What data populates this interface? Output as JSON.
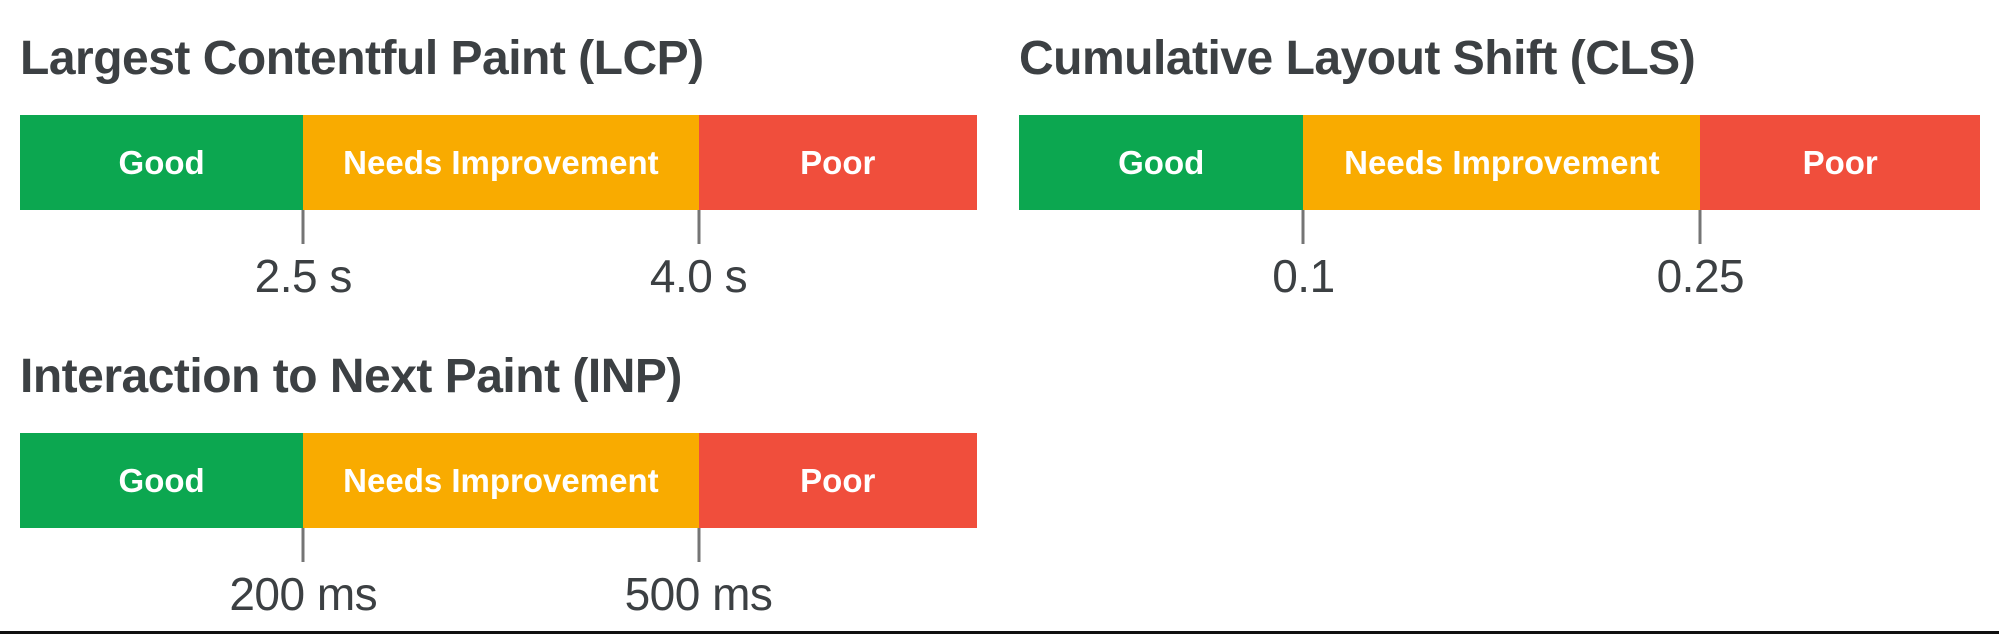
{
  "page": {
    "background": "#FFFFFF",
    "divider_color": "#101010"
  },
  "colors": {
    "good": "#0CA750",
    "needs_improvement": "#F9AB00",
    "poor": "#F04E3C",
    "title_text": "#3C4043",
    "threshold_text": "#3C4043",
    "segment_text": "#FFFFFF",
    "tick_line": "#757575"
  },
  "metrics": [
    {
      "id": "lcp",
      "title": "Largest Contentful Paint (LCP)",
      "segments": [
        {
          "label": "Good",
          "color": "#0CA750"
        },
        {
          "label": "Needs Improvement",
          "color": "#F9AB00"
        },
        {
          "label": "Poor",
          "color": "#F04E3C"
        }
      ],
      "thresholds": [
        {
          "label": "2.5 s"
        },
        {
          "label": "4.0 s"
        }
      ]
    },
    {
      "id": "cls",
      "title": "Cumulative Layout Shift (CLS)",
      "segments": [
        {
          "label": "Good",
          "color": "#0CA750"
        },
        {
          "label": "Needs Improvement",
          "color": "#F9AB00"
        },
        {
          "label": "Poor",
          "color": "#F04E3C"
        }
      ],
      "thresholds": [
        {
          "label": "0.1"
        },
        {
          "label": "0.25"
        }
      ]
    },
    {
      "id": "inp",
      "title": "Interaction to Next Paint (INP)",
      "segments": [
        {
          "label": "Good",
          "color": "#0CA750"
        },
        {
          "label": "Needs Improvement",
          "color": "#F9AB00"
        },
        {
          "label": "Poor",
          "color": "#F04E3C"
        }
      ],
      "thresholds": [
        {
          "label": "200 ms"
        },
        {
          "label": "500 ms"
        }
      ]
    }
  ],
  "chart_data": [
    {
      "type": "bar",
      "subtype": "threshold-scale",
      "title": "Largest Contentful Paint (LCP)",
      "orientation": "horizontal",
      "categories": [
        "Good",
        "Needs Improvement",
        "Poor"
      ],
      "ranges": [
        "<= 2.5 s",
        "2.5 s - 4.0 s",
        "> 4.0 s"
      ],
      "thresholds": [
        2.5,
        4.0
      ],
      "unit": "s",
      "threshold_labels": [
        "2.5 s",
        "4.0 s"
      ],
      "colors": [
        "#0CA750",
        "#F9AB00",
        "#F04E3C"
      ],
      "segment_widths_pct": [
        29.6,
        41.3,
        29.1
      ],
      "legend_position": "none",
      "grid": false
    },
    {
      "type": "bar",
      "subtype": "threshold-scale",
      "title": "Cumulative Layout Shift (CLS)",
      "orientation": "horizontal",
      "categories": [
        "Good",
        "Needs Improvement",
        "Poor"
      ],
      "ranges": [
        "<= 0.1",
        "0.1 - 0.25",
        "> 0.25"
      ],
      "thresholds": [
        0.1,
        0.25
      ],
      "unit": "score",
      "threshold_labels": [
        "0.1",
        "0.25"
      ],
      "colors": [
        "#0CA750",
        "#F9AB00",
        "#F04E3C"
      ],
      "segment_widths_pct": [
        29.6,
        41.3,
        29.1
      ],
      "legend_position": "none",
      "grid": false
    },
    {
      "type": "bar",
      "subtype": "threshold-scale",
      "title": "Interaction to Next Paint (INP)",
      "orientation": "horizontal",
      "categories": [
        "Good",
        "Needs Improvement",
        "Poor"
      ],
      "ranges": [
        "<= 200 ms",
        "200 ms - 500 ms",
        "> 500 ms"
      ],
      "thresholds": [
        200,
        500
      ],
      "unit": "ms",
      "threshold_labels": [
        "200 ms",
        "500 ms"
      ],
      "colors": [
        "#0CA750",
        "#F9AB00",
        "#F04E3C"
      ],
      "segment_widths_pct": [
        29.6,
        41.3,
        29.1
      ],
      "legend_position": "none",
      "grid": false
    }
  ]
}
